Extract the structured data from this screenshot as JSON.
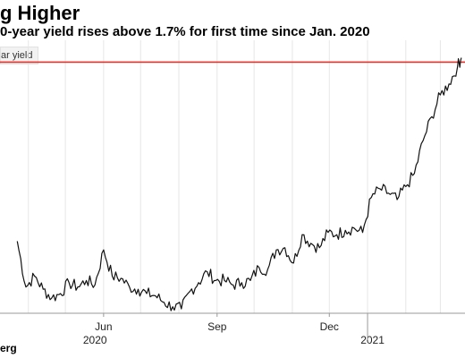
{
  "title": "g Higher",
  "subtitle": "0-year yield rises above 1.7% for first time since Jan. 2020",
  "source": "erg",
  "colors": {
    "line": "#111111",
    "threshold": "#e0322a",
    "grid": "#e6e6e6"
  },
  "chart_data": {
    "type": "line",
    "title": "g Higher",
    "subtitle": "0-year yield rises above 1.7% for first time since Jan. 2020",
    "legend": "ar yield",
    "legend_position": "top-left",
    "grid": true,
    "x_ticks": [
      "Jun",
      "Sep",
      "Dec"
    ],
    "x_ticks_secondary": [
      "2020",
      "2021"
    ],
    "threshold": 1.7,
    "ylim": [
      0.55,
      1.8
    ],
    "series": [
      {
        "name": "ar yield",
        "dates": [
          "2020-03-23",
          "2020-03-30",
          "2020-04-06",
          "2020-04-13",
          "2020-04-20",
          "2020-04-27",
          "2020-05-04",
          "2020-05-11",
          "2020-05-18",
          "2020-05-25",
          "2020-06-01",
          "2020-06-08",
          "2020-06-15",
          "2020-06-22",
          "2020-06-29",
          "2020-07-06",
          "2020-07-13",
          "2020-07-20",
          "2020-07-27",
          "2020-08-03",
          "2020-08-10",
          "2020-08-17",
          "2020-08-24",
          "2020-08-31",
          "2020-09-07",
          "2020-09-14",
          "2020-09-21",
          "2020-09-28",
          "2020-10-05",
          "2020-10-12",
          "2020-10-19",
          "2020-10-26",
          "2020-11-02",
          "2020-11-09",
          "2020-11-16",
          "2020-11-23",
          "2020-11-30",
          "2020-12-07",
          "2020-12-14",
          "2020-12-21",
          "2020-12-28",
          "2021-01-04",
          "2021-01-11",
          "2021-01-18",
          "2021-01-25",
          "2021-02-01",
          "2021-02-08",
          "2021-02-15",
          "2021-02-22",
          "2021-03-01",
          "2021-03-08",
          "2021-03-15",
          "2021-03-18"
        ],
        "values": [
          0.88,
          0.67,
          0.72,
          0.66,
          0.62,
          0.64,
          0.69,
          0.67,
          0.7,
          0.68,
          0.84,
          0.72,
          0.71,
          0.67,
          0.66,
          0.64,
          0.63,
          0.6,
          0.58,
          0.57,
          0.65,
          0.69,
          0.74,
          0.7,
          0.7,
          0.68,
          0.69,
          0.7,
          0.76,
          0.75,
          0.84,
          0.85,
          0.78,
          0.91,
          0.87,
          0.85,
          0.92,
          0.91,
          0.93,
          0.94,
          0.92,
          1.08,
          1.12,
          1.1,
          1.07,
          1.13,
          1.19,
          1.34,
          1.45,
          1.55,
          1.6,
          1.68,
          1.72
        ]
      }
    ]
  }
}
